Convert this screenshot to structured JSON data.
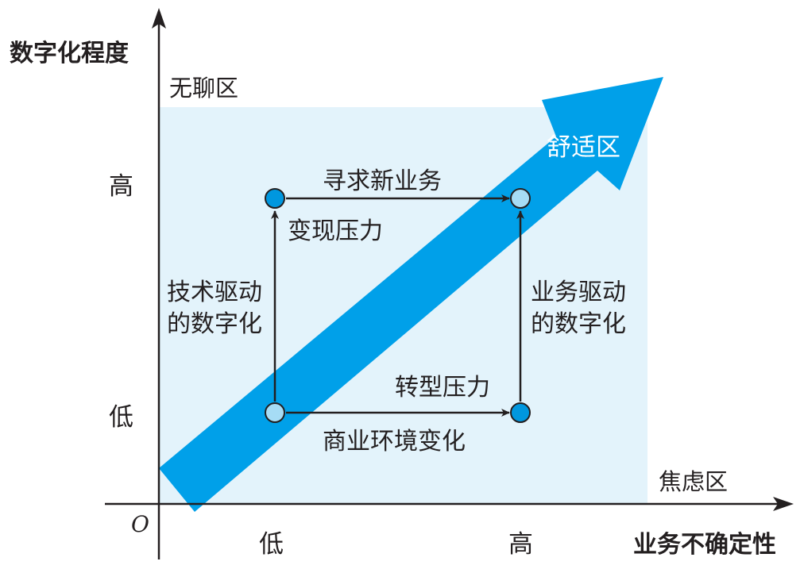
{
  "axes": {
    "y_title": "数字化程度",
    "x_title": "业务不确定性",
    "origin": "O",
    "y_high": "高",
    "y_low": "低",
    "x_low": "低",
    "x_high": "高"
  },
  "zones": {
    "boring": "无聊区",
    "anxiety": "焦虑区",
    "comfort": "舒适区"
  },
  "transitions": {
    "seek_new_business": "寻求新业务",
    "monetization_pressure": "变现压力",
    "tech_driven_line1": "技术驱动",
    "tech_driven_line2": "的数字化",
    "business_driven_line1": "业务驱动",
    "business_driven_line2": "的数字化",
    "transformation_pressure": "转型压力",
    "business_env_change": "商业环境变化"
  },
  "colors": {
    "accent": "#00a0e9",
    "region_fill": "#e3f3fb",
    "node_dark": "#0097df",
    "node_light": "#a6dcf5",
    "line": "#231f20"
  }
}
